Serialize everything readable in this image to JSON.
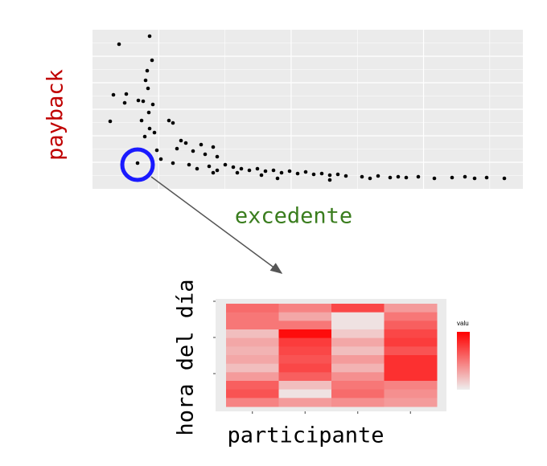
{
  "chart_data": [
    {
      "type": "scatter",
      "ylabel": "payback",
      "xlabel": "excedente",
      "color": "#000000",
      "grid": true,
      "xlim": [
        0,
        535
      ],
      "ylim": [
        0,
        198
      ],
      "x": [
        33,
        71,
        74,
        68,
        66,
        69,
        26,
        42,
        57,
        63,
        40,
        75,
        70,
        22,
        61,
        95,
        100,
        71,
        77,
        65,
        110,
        116,
        135,
        150,
        105,
        80,
        125,
        140,
        155,
        85,
        56,
        100,
        120,
        145,
        165,
        175,
        185,
        130,
        155,
        195,
        205,
        215,
        225,
        235,
        245,
        255,
        265,
        275,
        285,
        295,
        305,
        315,
        230,
        295,
        335,
        345,
        355,
        370,
        380,
        390,
        405,
        425,
        447,
        463,
        475,
        490,
        512,
        180,
        210,
        150
      ],
      "y": [
        180,
        190,
        160,
        147,
        135,
        125,
        117,
        118,
        110,
        109,
        107,
        105,
        95,
        84,
        85,
        85,
        82,
        75,
        70,
        65,
        60,
        57,
        55,
        52,
        50,
        48,
        47,
        43,
        40,
        37,
        32,
        32,
        30,
        28,
        30,
        27,
        25,
        25,
        23,
        23,
        25,
        22,
        23,
        20,
        22,
        19,
        21,
        18,
        19,
        17,
        18,
        16,
        13,
        11,
        15,
        13,
        16,
        14,
        15,
        14,
        15,
        13,
        14,
        15,
        13,
        14,
        13,
        20,
        17,
        20
      ]
    },
    {
      "type": "heatmap",
      "ylabel": "hora del día",
      "xlabel": "participante",
      "legend_title": "valu",
      "zlim": [
        0,
        1
      ],
      "color_low": "#eeeeee",
      "color_high": "#ff0000",
      "z": [
        [
          0.55,
          0.45,
          0.7,
          0.35
        ],
        [
          0.5,
          0.3,
          0.05,
          0.5
        ],
        [
          0.5,
          0.5,
          0.05,
          0.6
        ],
        [
          0.2,
          0.95,
          0.15,
          0.7
        ],
        [
          0.3,
          0.75,
          0.3,
          0.75
        ],
        [
          0.25,
          0.7,
          0.2,
          0.65
        ],
        [
          0.3,
          0.65,
          0.35,
          0.8
        ],
        [
          0.2,
          0.7,
          0.25,
          0.8
        ],
        [
          0.35,
          0.6,
          0.4,
          0.8
        ],
        [
          0.6,
          0.2,
          0.5,
          0.45
        ],
        [
          0.65,
          0.05,
          0.55,
          0.4
        ],
        [
          0.45,
          0.35,
          0.4,
          0.35
        ]
      ]
    }
  ]
}
